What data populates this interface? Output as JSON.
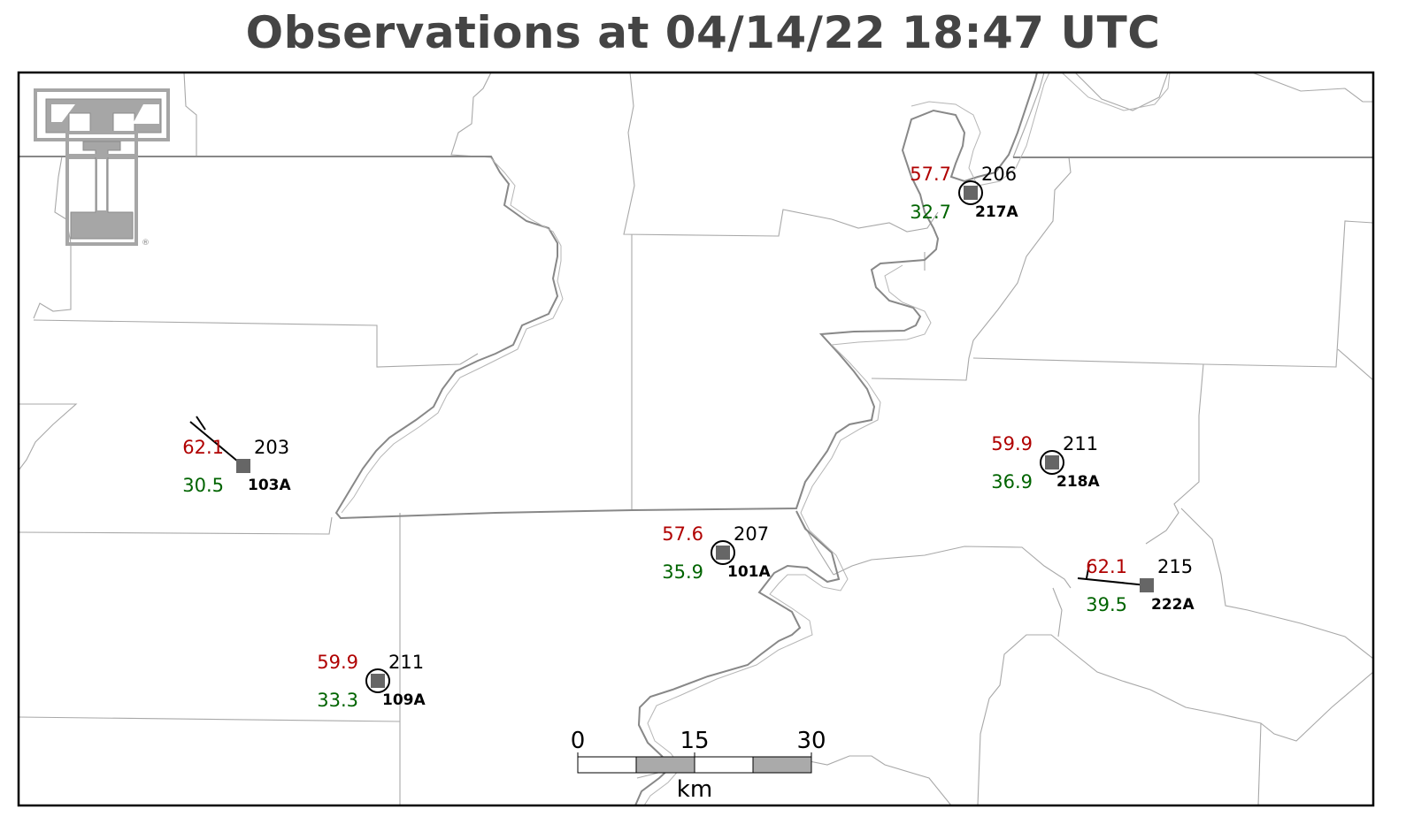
{
  "title": "Observations at 04/14/22 18:47 UTC",
  "colors": {
    "temperature": "#b00000",
    "dewpoint": "#006400",
    "station_marker": "#666666",
    "county_lines": "#999999",
    "state_lines": "#888888",
    "logo": "#a6a6a6"
  },
  "logo": {
    "name": "texas-tech-double-t-logo",
    "registered_mark": "®"
  },
  "stations": [
    {
      "id": "103A",
      "temperature": "62.1",
      "dewpoint": "30.5",
      "pressure": "203",
      "calm": false,
      "wind": "barb"
    },
    {
      "id": "217A",
      "temperature": "57.7",
      "dewpoint": "32.7",
      "pressure": "206",
      "calm": true
    },
    {
      "id": "218A",
      "temperature": "59.9",
      "dewpoint": "36.9",
      "pressure": "211",
      "calm": true
    },
    {
      "id": "101A",
      "temperature": "57.6",
      "dewpoint": "35.9",
      "pressure": "207",
      "calm": true
    },
    {
      "id": "222A",
      "temperature": "62.1",
      "dewpoint": "39.5",
      "pressure": "215",
      "calm": false,
      "wind": "barb"
    },
    {
      "id": "109A",
      "temperature": "59.9",
      "dewpoint": "33.3",
      "pressure": "211",
      "calm": true
    }
  ],
  "scale_bar": {
    "labels": [
      "0",
      "15",
      "30"
    ],
    "unit": "km"
  }
}
